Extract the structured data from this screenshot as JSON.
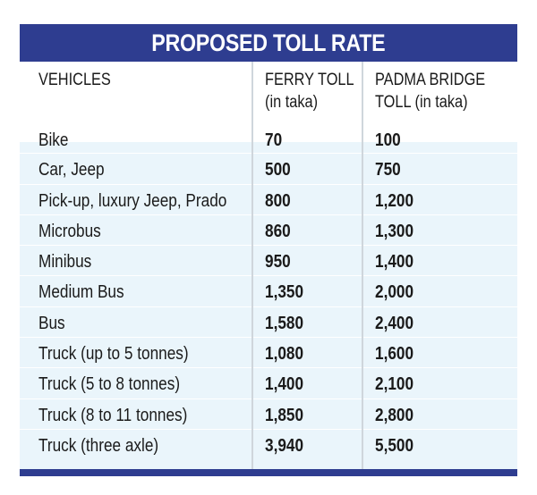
{
  "title": "PROPOSED TOLL RATE",
  "headers": {
    "vehicles": "VEHICLES",
    "ferry_line1": "FERRY TOLL",
    "ferry_line2": "(in taka)",
    "padma_line1": "PADMA BRIDGE",
    "padma_line2": "TOLL (in taka)"
  },
  "rows": [
    {
      "vehicle": "Bike",
      "ferry": "70",
      "padma": "100"
    },
    {
      "vehicle": "Car, Jeep",
      "ferry": "500",
      "padma": "750"
    },
    {
      "vehicle": "Pick-up, luxury Jeep, Prado",
      "ferry": "800",
      "padma": "1,200"
    },
    {
      "vehicle": "Microbus",
      "ferry": "860",
      "padma": "1,300"
    },
    {
      "vehicle": "Minibus",
      "ferry": "950",
      "padma": "1,400"
    },
    {
      "vehicle": "Medium Bus",
      "ferry": "1,350",
      "padma": "2,000"
    },
    {
      "vehicle": "Bus",
      "ferry": "1,580",
      "padma": "2,400"
    },
    {
      "vehicle": "Truck (up to 5 tonnes)",
      "ferry": "1,080",
      "padma": "1,600"
    },
    {
      "vehicle": "Truck (5 to 8 tonnes)",
      "ferry": "1,400",
      "padma": "2,100"
    },
    {
      "vehicle": "Truck (8 to 11 tonnes)",
      "ferry": "1,850",
      "padma": "2,800"
    },
    {
      "vehicle": "Truck (three axle)",
      "ferry": "3,940",
      "padma": "5,500"
    }
  ],
  "colors": {
    "title_bar": "#2e3d90",
    "body_bg": "#eaf5fb",
    "divider": "#cfd6dc"
  }
}
